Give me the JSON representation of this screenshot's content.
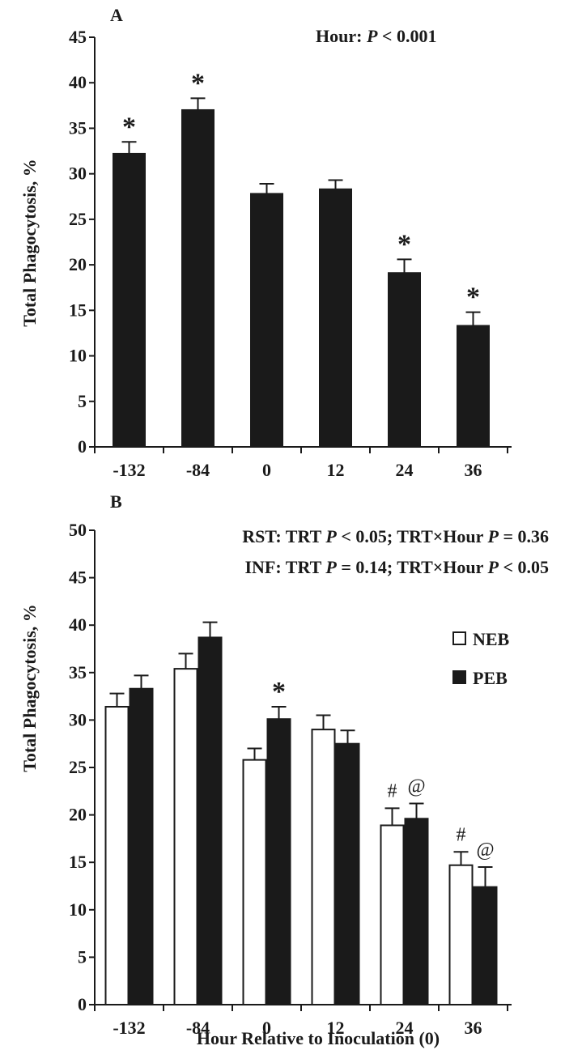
{
  "chart_data": [
    {
      "type": "bar",
      "panel": "A",
      "annotation": {
        "prefix": "Hour: ",
        "p": "P",
        "rest": " < 0.001"
      },
      "ylabel": "Total Phagocytosis, %",
      "xlabel": "",
      "ylim": [
        0,
        45
      ],
      "yticks": [
        0,
        5,
        10,
        15,
        20,
        25,
        30,
        35,
        40,
        45
      ],
      "categories": [
        "-132",
        "-84",
        "0",
        "12",
        "24",
        "36"
      ],
      "series": [
        {
          "color": "#1a1a1a",
          "values": [
            32.2,
            37.0,
            27.8,
            28.3,
            19.1,
            13.3
          ],
          "errors": [
            1.3,
            1.3,
            1.1,
            1.0,
            1.5,
            1.5
          ],
          "markers": [
            "*",
            "*",
            "",
            "",
            "*",
            "*"
          ]
        }
      ]
    },
    {
      "type": "bar",
      "panel": "B",
      "annotation_lines": [
        {
          "segments": [
            {
              "text": "RST: TRT ",
              "italic": false
            },
            {
              "text": "P",
              "italic": true
            },
            {
              "text": " < 0.05; TRT×Hour ",
              "italic": false
            },
            {
              "text": "P",
              "italic": true
            },
            {
              "text": " = 0.36",
              "italic": false
            }
          ]
        },
        {
          "segments": [
            {
              "text": "INF: TRT ",
              "italic": false
            },
            {
              "text": "P",
              "italic": true
            },
            {
              "text": " = 0.14; TRT×Hour ",
              "italic": false
            },
            {
              "text": "P",
              "italic": true
            },
            {
              "text": " < 0.05",
              "italic": false
            }
          ]
        }
      ],
      "ylabel": "Total Phagocytosis, %",
      "xlabel": "Hour Relative to Inoculation (0)",
      "ylim": [
        0,
        50
      ],
      "yticks": [
        0,
        5,
        10,
        15,
        20,
        25,
        30,
        35,
        40,
        45,
        50
      ],
      "categories": [
        "-132",
        "-84",
        "0",
        "12",
        "24",
        "36"
      ],
      "legend_position": "top-right",
      "series": [
        {
          "name": "NEB",
          "color": "#ffffff",
          "values": [
            31.4,
            35.4,
            25.8,
            29.0,
            18.9,
            14.7
          ],
          "errors": [
            1.4,
            1.6,
            1.2,
            1.5,
            1.8,
            1.4
          ],
          "markers": [
            "",
            "",
            "",
            "",
            "#",
            "#"
          ]
        },
        {
          "name": "PEB",
          "color": "#1a1a1a",
          "values": [
            33.3,
            38.7,
            30.1,
            27.5,
            19.6,
            12.4
          ],
          "errors": [
            1.4,
            1.6,
            1.3,
            1.4,
            1.6,
            2.1
          ],
          "markers": [
            "",
            "",
            "*",
            "",
            "@",
            "@"
          ]
        }
      ]
    }
  ]
}
